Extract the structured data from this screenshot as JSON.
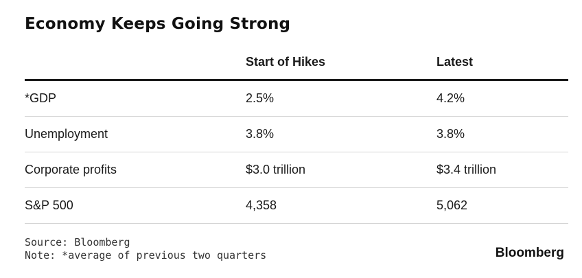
{
  "title": "Economy Keeps Going Strong",
  "table": {
    "columns": [
      "",
      "Start of Hikes",
      "Latest"
    ],
    "rows": [
      {
        "label": "*GDP",
        "start": "2.5%",
        "latest": "4.2%"
      },
      {
        "label": "Unemployment",
        "start": "3.8%",
        "latest": "3.8%"
      },
      {
        "label": "Corporate profits",
        "start": "$3.0 trillion",
        "latest": "$3.4 trillion"
      },
      {
        "label": "S&P 500",
        "start": "4,358",
        "latest": "5,062"
      }
    ]
  },
  "footer": {
    "source": "Source: Bloomberg",
    "note": "Note: *average of previous two quarters"
  },
  "brand": "Bloomberg",
  "colors": {
    "text": "#1a1a1a",
    "header_rule": "#1a1a1a",
    "row_rule": "#d4d4d4",
    "background": "#ffffff"
  }
}
